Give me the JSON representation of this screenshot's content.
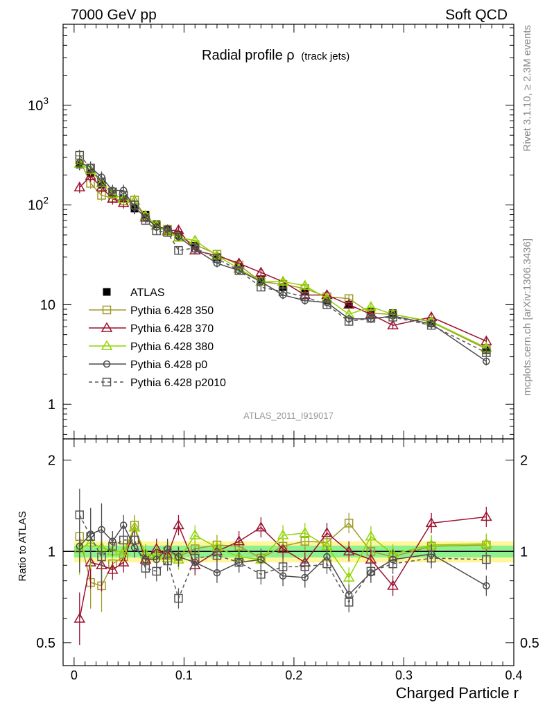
{
  "header": {
    "left": "7000 GeV pp",
    "right": "Soft QCD",
    "side_top": "Rivet 3.1.10, ≥ 2.3M events",
    "side_bottom": "mcplots.cern.ch [arXiv:1306.3436]"
  },
  "chart_data": [
    {
      "type": "line",
      "title": "Radial profile ρ",
      "title_suffix": "(track jets)",
      "watermark": "ATLAS_2011_I919017",
      "ylog": true,
      "ylim": [
        0.45,
        6500
      ],
      "xlim": [
        -0.01,
        0.4
      ],
      "ytick_labels": [
        {
          "value": 1,
          "label": "1"
        },
        {
          "value": 10,
          "label": "10"
        },
        {
          "value": 100,
          "label": "10",
          "sup": "2"
        },
        {
          "value": 1000,
          "label": "10",
          "sup": "3"
        }
      ],
      "x": [
        0.005,
        0.015,
        0.025,
        0.035,
        0.045,
        0.055,
        0.065,
        0.075,
        0.085,
        0.095,
        0.11,
        0.13,
        0.15,
        0.17,
        0.19,
        0.21,
        0.23,
        0.25,
        0.27,
        0.29,
        0.325,
        0.375
      ],
      "series": [
        {
          "name": "ATLAS",
          "color": "#000000",
          "marker": "filled-square",
          "line": "none",
          "values": [
            255,
            210,
            160,
            130,
            115,
            92,
            80,
            64,
            57,
            50,
            39,
            30,
            24,
            18,
            15,
            13.5,
            11,
            10,
            8.5,
            8.2,
            6.5,
            3.5
          ]
        },
        {
          "name": "Pythia 6.428 350",
          "color": "#a09a27",
          "marker": "open-square",
          "line": "solid",
          "values": [
            285,
            165,
            125,
            118,
            110,
            112,
            75,
            62,
            57,
            48,
            40,
            32,
            25,
            17,
            16,
            14.5,
            12,
            11.5,
            8.2,
            8.0,
            6.7,
            3.6
          ]
        },
        {
          "name": "Pythia 6.428 370",
          "color": "#9b1030",
          "marker": "open-triangle",
          "line": "solid",
          "values": [
            150,
            195,
            150,
            115,
            105,
            110,
            75,
            62,
            55,
            56,
            35,
            31,
            26,
            21,
            17,
            12.5,
            12.5,
            10,
            8,
            6.2,
            7.5,
            4.3
          ]
        },
        {
          "name": "Pythia 6.428 380",
          "color": "#8fd400",
          "marker": "open-triangle",
          "line": "solid",
          "values": [
            260,
            225,
            165,
            130,
            115,
            110,
            78,
            62,
            54,
            47,
            44,
            31,
            23,
            17,
            17,
            15.5,
            11.5,
            8,
            9.5,
            8,
            6.8,
            3.7
          ]
        },
        {
          "name": "Pythia 6.428 p0",
          "color": "#4a4a4a",
          "marker": "open-circle",
          "line": "solid",
          "values": [
            265,
            240,
            190,
            140,
            140,
            95,
            75,
            60,
            58,
            48,
            36,
            26,
            22,
            17,
            12.5,
            11,
            10.5,
            7.2,
            7.2,
            7.7,
            6.4,
            2.7
          ]
        },
        {
          "name": "Pythia 6.428 p2010",
          "color": "#555555",
          "marker": "open-square",
          "line": "dashed",
          "values": [
            315,
            235,
            170,
            135,
            125,
            100,
            70,
            55,
            53,
            35,
            37,
            29,
            22,
            15,
            13.5,
            12,
            10,
            6.8,
            7.3,
            7.5,
            6.2,
            3.3
          ]
        }
      ]
    },
    {
      "type": "line",
      "ylabel": "Ratio to ATLAS",
      "xlabel": "Charged Particle r",
      "ylog": true,
      "ylim": [
        0.42,
        2.35
      ],
      "xlim": [
        -0.01,
        0.4
      ],
      "ytick_labels": [
        {
          "value": 0.5,
          "label": "0.5"
        },
        {
          "value": 1,
          "label": "1"
        },
        {
          "value": 2,
          "label": "2"
        }
      ],
      "xtick_labels": [
        {
          "value": 0,
          "label": "0"
        },
        {
          "value": 0.1,
          "label": "0.1"
        },
        {
          "value": 0.2,
          "label": "0.2"
        },
        {
          "value": 0.3,
          "label": "0.3"
        },
        {
          "value": 0.4,
          "label": "0.4"
        }
      ],
      "x": [
        0.005,
        0.015,
        0.025,
        0.035,
        0.045,
        0.055,
        0.065,
        0.075,
        0.085,
        0.095,
        0.11,
        0.13,
        0.15,
        0.17,
        0.19,
        0.21,
        0.23,
        0.25,
        0.27,
        0.29,
        0.325,
        0.375
      ],
      "series": [
        {
          "name": "Pythia 6.428 350",
          "color": "#a09a27",
          "marker": "open-square",
          "line": "solid",
          "values": [
            1.12,
            0.79,
            0.77,
            0.91,
            0.96,
            1.22,
            0.93,
            0.97,
            1.0,
            0.96,
            1.02,
            1.05,
            1.04,
            0.95,
            1.04,
            1.08,
            1.07,
            1.24,
            1.0,
            0.96,
            1.04,
            1.05
          ]
        },
        {
          "name": "Pythia 6.428 370",
          "color": "#9b1030",
          "marker": "open-triangle",
          "line": "solid",
          "values": [
            0.6,
            0.92,
            0.9,
            0.87,
            0.92,
            1.2,
            0.94,
            1.02,
            0.97,
            1.22,
            0.9,
            1.0,
            1.08,
            1.2,
            1.02,
            0.92,
            1.15,
            1.0,
            0.94,
            0.77,
            1.24,
            1.3
          ]
        },
        {
          "name": "Pythia 6.428 380",
          "color": "#8fd400",
          "marker": "open-triangle",
          "line": "solid",
          "values": [
            1.02,
            1.07,
            1.03,
            1.0,
            1.0,
            1.2,
            0.98,
            0.97,
            0.95,
            0.94,
            1.13,
            1.03,
            0.96,
            0.94,
            1.13,
            1.15,
            1.04,
            0.82,
            1.12,
            0.98,
            1.05,
            1.06
          ]
        },
        {
          "name": "Pythia 6.428 p0",
          "color": "#4a4a4a",
          "marker": "open-circle",
          "line": "solid",
          "values": [
            1.04,
            1.14,
            1.18,
            1.08,
            1.22,
            1.03,
            0.94,
            0.94,
            1.02,
            0.96,
            0.92,
            0.85,
            0.92,
            0.94,
            0.83,
            0.82,
            0.96,
            0.72,
            0.85,
            0.94,
            0.98,
            0.77
          ]
        },
        {
          "name": "Pythia 6.428 p2010",
          "color": "#555555",
          "marker": "open-square",
          "line": "dashed",
          "values": [
            1.32,
            1.12,
            0.96,
            1.04,
            1.09,
            1.09,
            0.88,
            0.86,
            0.93,
            0.7,
            0.95,
            0.97,
            0.92,
            0.84,
            0.89,
            0.89,
            0.91,
            0.68,
            0.86,
            0.91,
            0.95,
            0.94
          ]
        }
      ]
    }
  ]
}
